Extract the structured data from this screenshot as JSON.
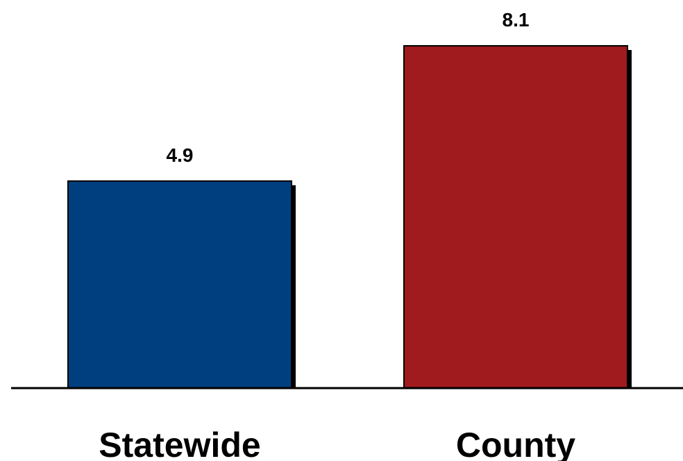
{
  "chart_data": {
    "type": "bar",
    "categories": [
      "Statewide",
      "County"
    ],
    "values": [
      4.9,
      8.1
    ],
    "data_labels": [
      "4.9",
      "8.1"
    ],
    "colors": [
      "#003f7f",
      "#a01b1e"
    ],
    "shadow_color": "#000000",
    "ylim": [
      0,
      8.1
    ],
    "grid": false,
    "legend": "none",
    "title": "",
    "xlabel": "",
    "ylabel": ""
  }
}
